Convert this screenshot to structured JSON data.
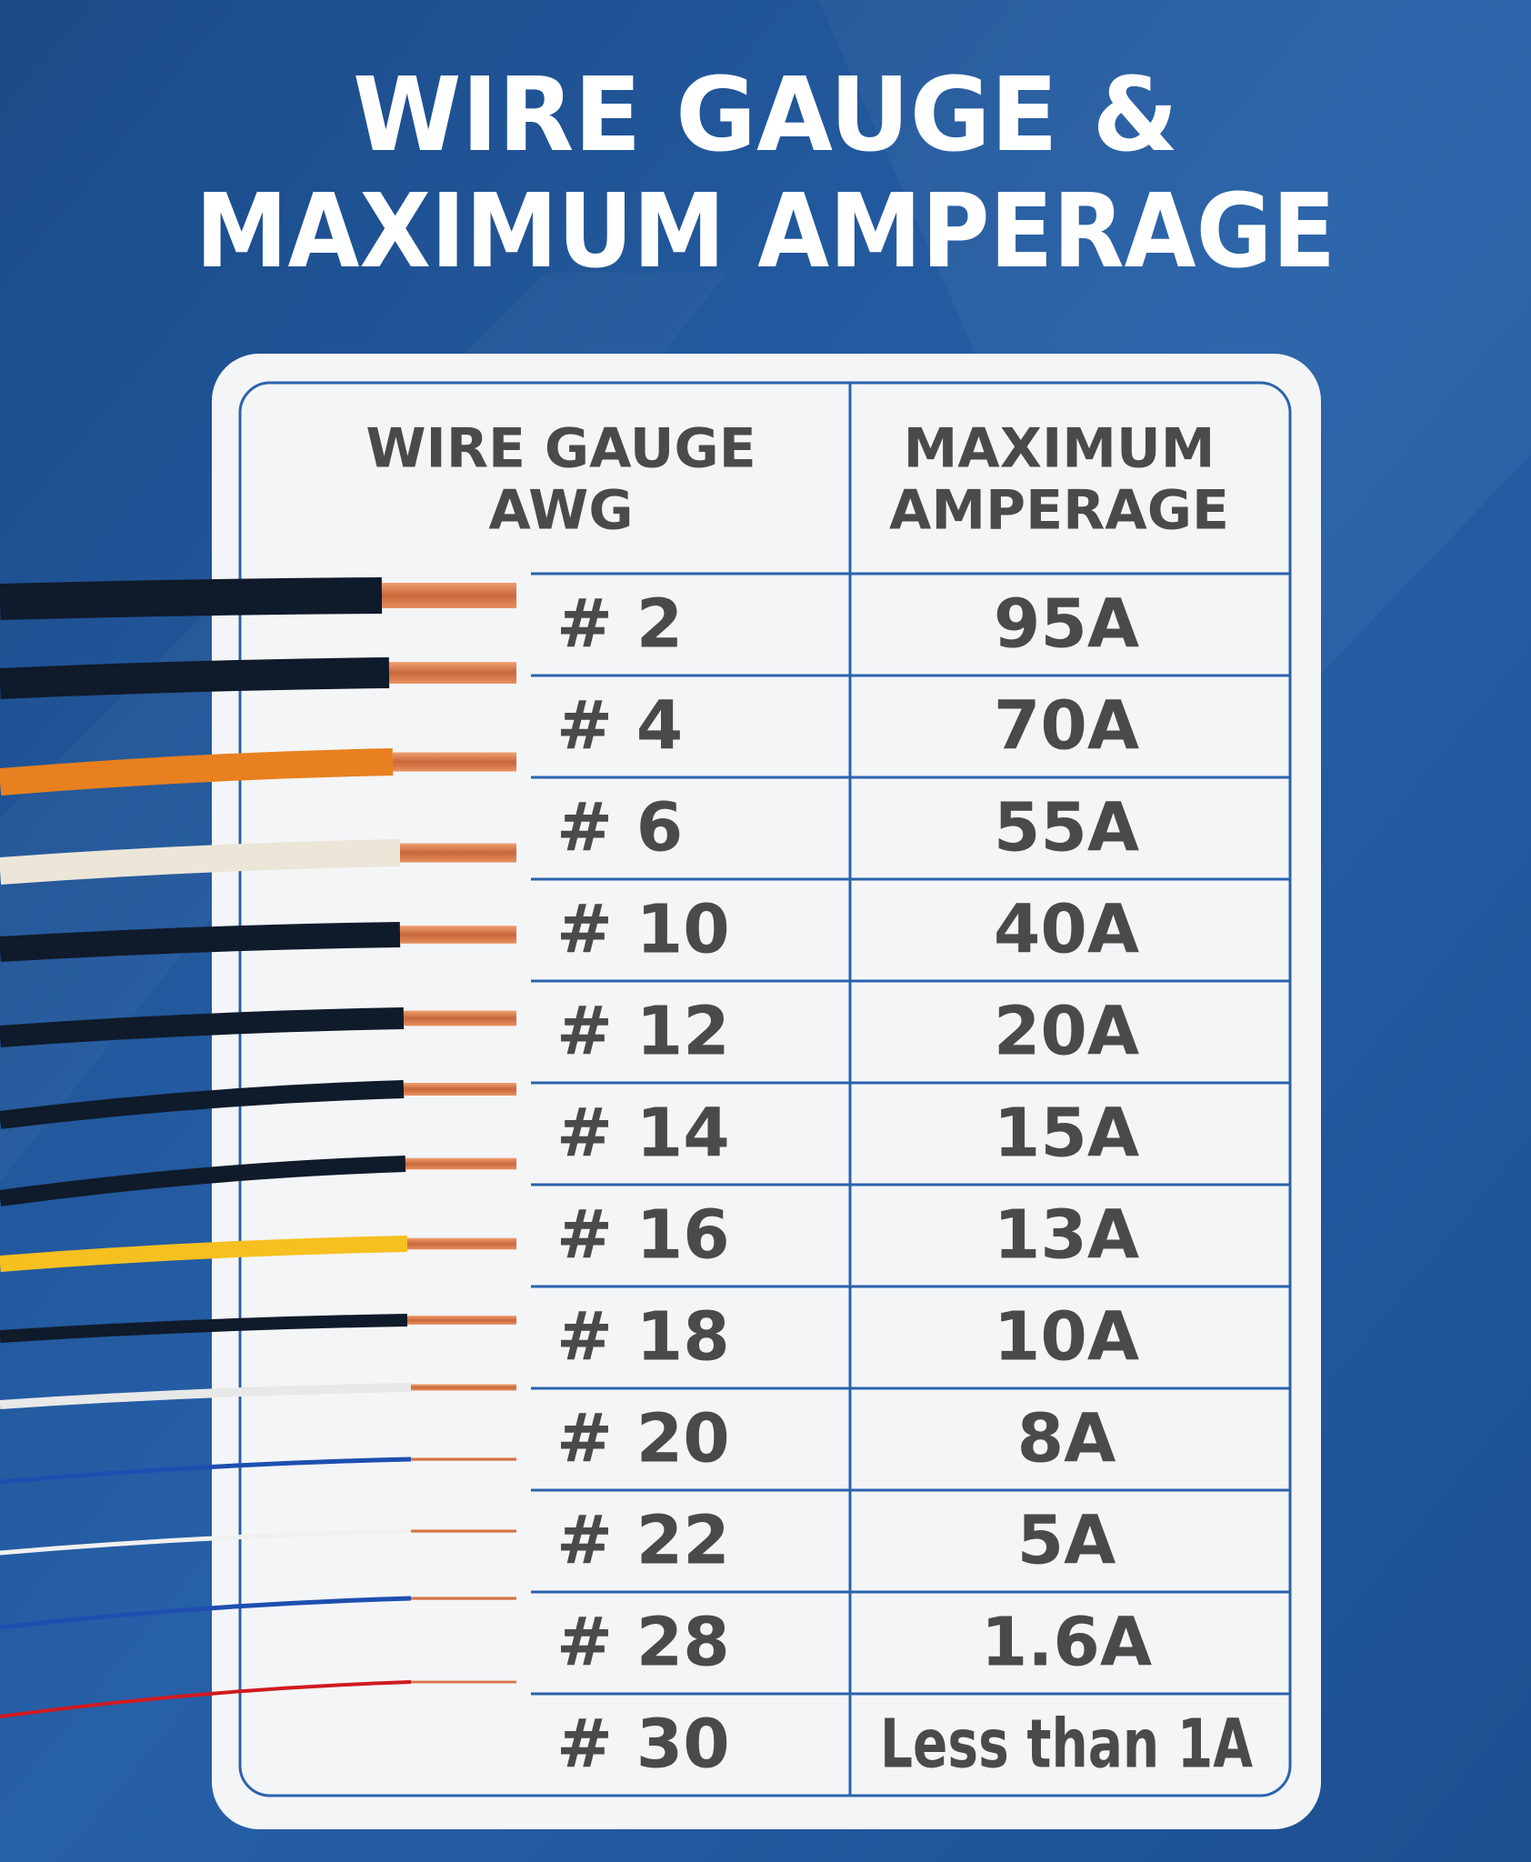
{
  "title": [
    "WIRE GAUGE &",
    "MAXIMUM AMPERAGE"
  ],
  "table": {
    "header": [
      [
        "WIRE GAUGE",
        "AWG"
      ],
      [
        "MAXIMUM",
        "AMPERAGE"
      ]
    ],
    "rows": [
      [
        "# 2",
        "95A"
      ],
      [
        "# 4",
        "70A"
      ],
      [
        "# 6",
        "55A"
      ],
      [
        "# 10",
        "40A"
      ],
      [
        "# 12",
        "20A"
      ],
      [
        "# 14",
        "15A"
      ],
      [
        "# 16",
        "13A"
      ],
      [
        "# 18",
        "10A"
      ],
      [
        "# 20",
        "8A"
      ],
      [
        "# 22",
        "5A"
      ],
      [
        "# 28",
        "1.6A"
      ],
      [
        "# 30",
        "Less than 1A"
      ]
    ]
  }
}
